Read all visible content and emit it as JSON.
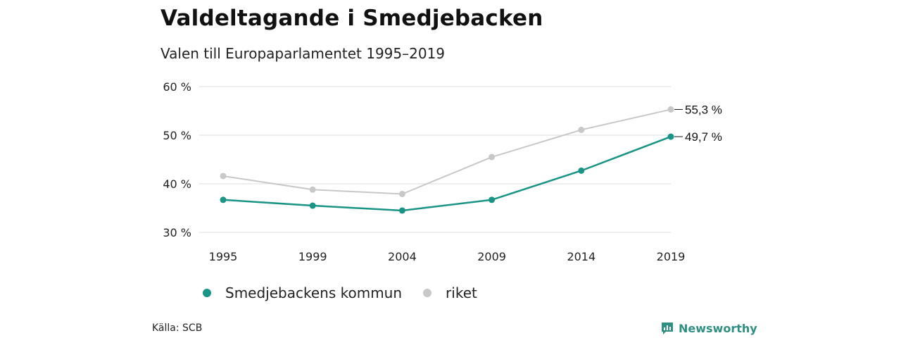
{
  "title": "Valdeltagande i Smedjebacken",
  "subtitle": "Valen till Europaparlamentet 1995–2019",
  "source": "Källa: SCB",
  "brand": "Newsworthy",
  "colors": {
    "kommun": "#1a9485",
    "riket": "#c8c8c8",
    "grid": "#dddddd",
    "brand": "#2f8f80"
  },
  "chart_data": {
    "type": "line",
    "x": [
      "1995",
      "1999",
      "2004",
      "2009",
      "2014",
      "2019"
    ],
    "yticks": [
      "30 %",
      "40 %",
      "50 %",
      "60 %"
    ],
    "ylim": [
      30,
      60
    ],
    "grid": true,
    "legend_position": "bottom-left",
    "series": [
      {
        "name": "Smedjebackens kommun",
        "key": "kommun",
        "values": [
          36.7,
          35.5,
          34.5,
          36.7,
          42.7,
          49.7
        ],
        "end_label": "49,7 %"
      },
      {
        "name": "riket",
        "key": "riket",
        "values": [
          41.6,
          38.8,
          37.9,
          45.5,
          51.1,
          55.3
        ],
        "end_label": "55,3 %"
      }
    ]
  }
}
